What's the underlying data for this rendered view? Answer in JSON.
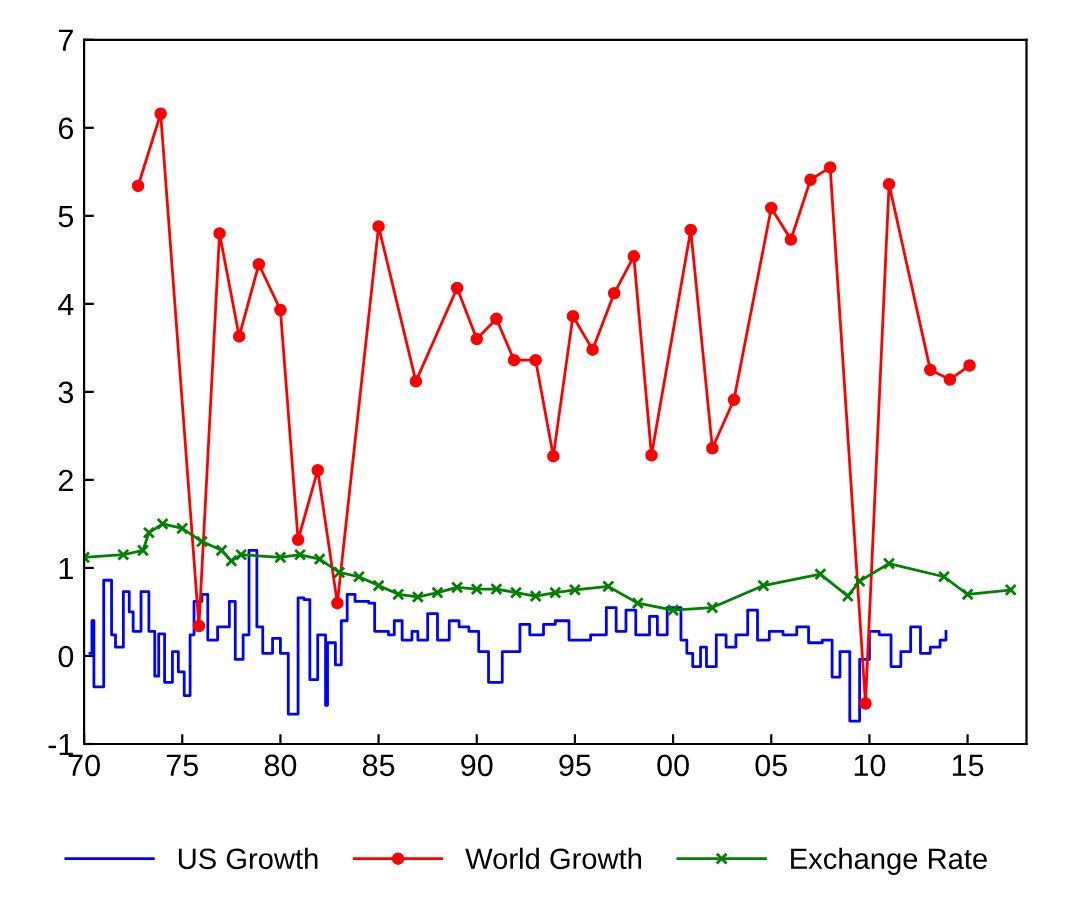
{
  "chart_data": {
    "type": "line",
    "xlim": [
      1970,
      2018
    ],
    "ylim": [
      -1,
      7
    ],
    "xticks": [
      {
        "value": 1970,
        "label": "70"
      },
      {
        "value": 1975,
        "label": "75"
      },
      {
        "value": 1980,
        "label": "80"
      },
      {
        "value": 1985,
        "label": "85"
      },
      {
        "value": 1990,
        "label": "90"
      },
      {
        "value": 1995,
        "label": "95"
      },
      {
        "value": 2000,
        "label": "00"
      },
      {
        "value": 2005,
        "label": "05"
      },
      {
        "value": 2010,
        "label": "10"
      },
      {
        "value": 2015,
        "label": "15"
      }
    ],
    "yticks": [
      -1,
      0,
      1,
      2,
      3,
      4,
      5,
      6,
      7
    ],
    "grid": false,
    "legend": "bottom",
    "series": [
      {
        "name": "US Growth",
        "type": "step",
        "color": "#0000ff",
        "marker": "none",
        "line_style": "solid",
        "x": [
          1970.3,
          1970.4,
          1970.5,
          1971.0,
          1971.4,
          1971.6,
          1972.0,
          1972.3,
          1972.5,
          1972.9,
          1973.3,
          1973.6,
          1973.8,
          1974.1,
          1974.5,
          1974.8,
          1975.1,
          1975.4,
          1975.6,
          1976.0,
          1976.3,
          1976.8,
          1977.4,
          1977.7,
          1978.1,
          1978.4,
          1978.8,
          1979.1,
          1979.6,
          1980.0,
          1980.4,
          1980.9,
          1981.2,
          1981.5,
          1981.9,
          1982.3,
          1982.4,
          1982.8,
          1983.1,
          1983.4,
          1983.8,
          1984.5,
          1984.8,
          1985.5,
          1985.8,
          1986.2,
          1986.7,
          1987.0,
          1987.5,
          1988.0,
          1988.6,
          1989.1,
          1989.6,
          1990.1,
          1990.6,
          1991.3,
          1992.2,
          1992.7,
          1993.4,
          1994.0,
          1994.7,
          1995.1,
          1995.8,
          1996.6,
          1997.1,
          1997.6,
          1998.1,
          1998.8,
          1999.2,
          1999.7,
          2000.4,
          2000.7,
          2001.0,
          2001.4,
          2001.7,
          2002.2,
          2002.7,
          2003.2,
          2003.8,
          2004.3,
          2004.9,
          2005.6,
          2006.3,
          2006.9,
          2007.6,
          2008.1,
          2008.5,
          2009.0,
          2009.5,
          2010.0,
          2010.5,
          2011.1,
          2011.6,
          2012.1,
          2012.6,
          2013.1,
          2013.6,
          2013.9
        ],
        "values": [
          0.03,
          0.4,
          -0.35,
          0.86,
          0.24,
          0.1,
          0.73,
          0.5,
          0.28,
          0.73,
          0.28,
          -0.23,
          0.25,
          -0.3,
          0.05,
          -0.18,
          -0.45,
          0.24,
          0.62,
          0.7,
          0.18,
          0.33,
          0.62,
          -0.04,
          0.24,
          1.2,
          0.33,
          0.03,
          0.2,
          0.03,
          -0.66,
          0.66,
          0.64,
          -0.27,
          0.24,
          -0.56,
          0.15,
          -0.1,
          0.4,
          0.7,
          0.62,
          0.6,
          0.28,
          0.24,
          0.4,
          0.18,
          0.28,
          0.18,
          0.48,
          0.18,
          0.4,
          0.33,
          0.28,
          0.05,
          -0.3,
          0.05,
          0.36,
          0.24,
          0.36,
          0.4,
          0.18,
          0.18,
          0.24,
          0.55,
          0.28,
          0.52,
          0.24,
          0.45,
          0.24,
          0.55,
          0.18,
          0.03,
          -0.12,
          0.1,
          -0.12,
          0.24,
          0.1,
          0.24,
          0.52,
          0.18,
          0.28,
          0.24,
          0.33,
          0.15,
          0.18,
          -0.24,
          0.05,
          -0.74,
          -0.04,
          0.28,
          0.24,
          -0.12,
          0.05,
          0.33,
          0.03,
          0.1,
          0.18,
          0.28
        ]
      },
      {
        "name": "World Growth",
        "color": "#ff0000",
        "marker": "circle",
        "line_style": "solid",
        "x": [
          1972.75,
          1973.9,
          1975.85,
          1976.9,
          1977.9,
          1978.9,
          1980.0,
          1980.9,
          1981.9,
          1982.9,
          1985.0,
          1986.9,
          1989.0,
          1990.0,
          1991.0,
          1991.9,
          1993.0,
          1993.9,
          1994.9,
          1995.9,
          1997.0,
          1998.0,
          1998.9,
          2000.9,
          2002.0,
          2003.1,
          2005.0,
          2006.0,
          2007.0,
          2008.0,
          2009.8,
          2011.0,
          2013.1,
          2014.1,
          2015.1
        ],
        "values": [
          5.34,
          6.16,
          0.34,
          4.8,
          3.63,
          4.45,
          3.93,
          1.32,
          2.11,
          0.6,
          4.88,
          3.12,
          4.18,
          3.6,
          3.83,
          3.36,
          3.36,
          2.27,
          3.86,
          3.48,
          4.12,
          4.54,
          2.28,
          4.84,
          2.36,
          2.91,
          5.09,
          4.73,
          5.41,
          5.55,
          -0.54,
          5.36,
          3.25,
          3.14,
          3.3
        ]
      },
      {
        "name": "Exchange Rate",
        "color": "#008000",
        "marker": "cross",
        "line_style": "solid",
        "x": [
          1970,
          1972,
          1973,
          1973.3,
          1974,
          1975,
          1976,
          1977,
          1977.5,
          1978,
          1980,
          1981,
          1982,
          1983,
          1984,
          1985,
          1986,
          1987,
          1988,
          1989,
          1990,
          1991,
          1992,
          1993,
          1994,
          1995,
          1996.7,
          1998.2,
          2000,
          2002,
          2004.6,
          2007.5,
          2008.9,
          2009.5,
          2011,
          2013.8,
          2015,
          2017.2
        ],
        "values": [
          1.12,
          1.15,
          1.2,
          1.4,
          1.5,
          1.45,
          1.3,
          1.2,
          1.08,
          1.15,
          1.12,
          1.15,
          1.1,
          0.95,
          0.9,
          0.8,
          0.7,
          0.67,
          0.72,
          0.78,
          0.76,
          0.76,
          0.72,
          0.68,
          0.72,
          0.75,
          0.79,
          0.6,
          0.52,
          0.55,
          0.8,
          0.93,
          0.68,
          0.85,
          1.05,
          0.9,
          0.7,
          0.75
        ]
      }
    ]
  }
}
